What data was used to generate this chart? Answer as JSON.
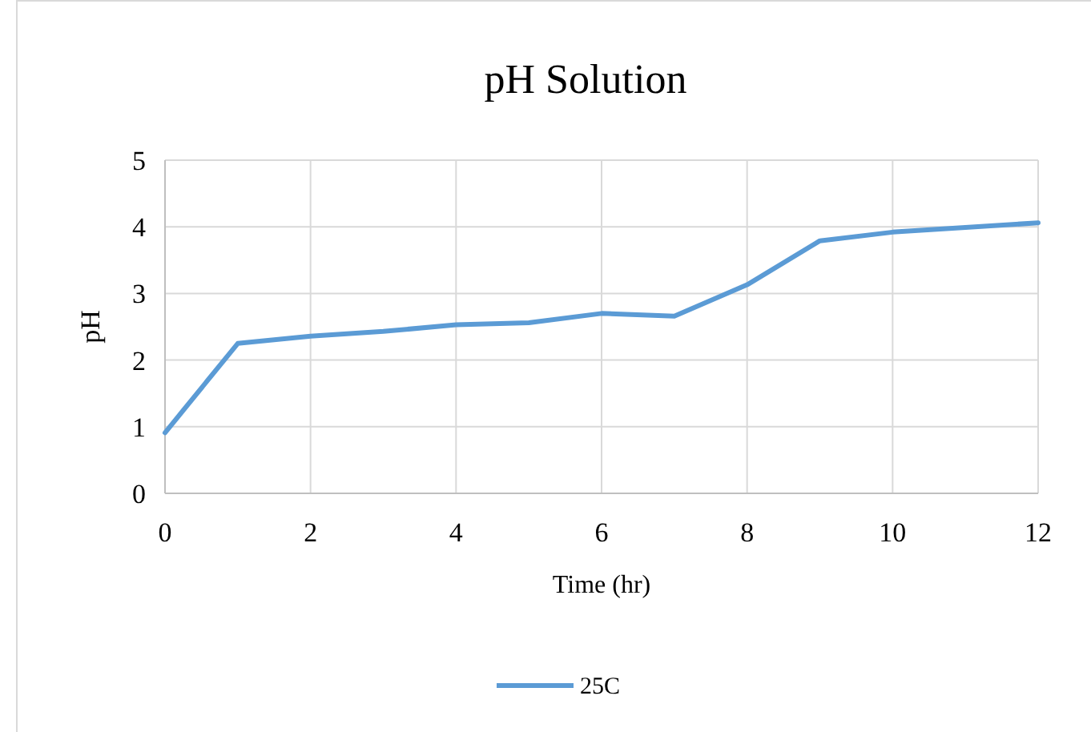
{
  "chart_data": {
    "type": "line",
    "title": "pH Solution",
    "xlabel": "Time (hr)",
    "ylabel": "pH",
    "x": [
      0,
      1,
      2,
      3,
      4,
      5,
      6,
      7,
      8,
      9,
      10,
      11,
      12
    ],
    "series": [
      {
        "name": "25C",
        "color": "#5b9bd5",
        "values": [
          0.91,
          2.25,
          2.36,
          2.43,
          2.53,
          2.56,
          2.7,
          2.66,
          3.13,
          3.79,
          3.92,
          3.99,
          4.06
        ]
      }
    ],
    "xlim": [
      0,
      12
    ],
    "xticks": [
      0,
      2,
      4,
      6,
      8,
      10,
      12
    ],
    "ylim": [
      0,
      5
    ],
    "yticks": [
      0,
      1,
      2,
      3,
      4,
      5
    ],
    "grid": true,
    "legend": "bottom",
    "marker": "none",
    "line_style": "solid"
  }
}
